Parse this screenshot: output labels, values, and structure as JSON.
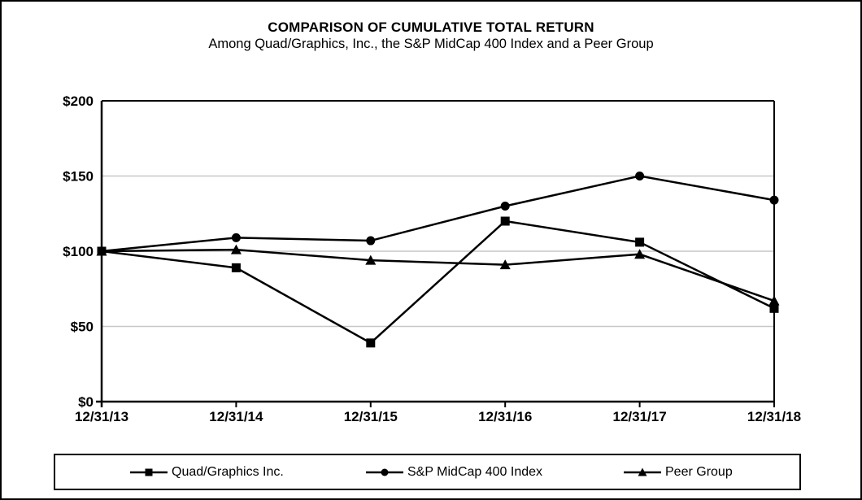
{
  "page": {
    "background": "#ffffff",
    "border_color": "#000000"
  },
  "chart_data": {
    "type": "line",
    "title": "COMPARISON OF CUMULATIVE TOTAL RETURN",
    "subtitle": "Among Quad/Graphics, Inc., the S&P MidCap 400 Index and a Peer Group",
    "categories": [
      "12/31/13",
      "12/31/14",
      "12/31/15",
      "12/31/16",
      "12/31/17",
      "12/31/18"
    ],
    "y_ticks": [
      0,
      50,
      100,
      150,
      200
    ],
    "y_tick_labels": [
      "$0",
      "$50",
      "$100",
      "$150",
      "$200"
    ],
    "ylim": [
      0,
      200
    ],
    "grid": "horizontal",
    "grid_color": "#c7c7c7",
    "line_color": "#000000",
    "marker_color": "#000000",
    "legend_position": "bottom",
    "series": [
      {
        "name": "Quad/Graphics Inc.",
        "marker": "square",
        "values": [
          100,
          89,
          39,
          120,
          106,
          62
        ]
      },
      {
        "name": "S&P MidCap 400 Index",
        "marker": "circle",
        "values": [
          100,
          109,
          107,
          130,
          150,
          134
        ]
      },
      {
        "name": "Peer Group",
        "marker": "triangle",
        "values": [
          100,
          101,
          94,
          91,
          98,
          67
        ]
      }
    ]
  }
}
